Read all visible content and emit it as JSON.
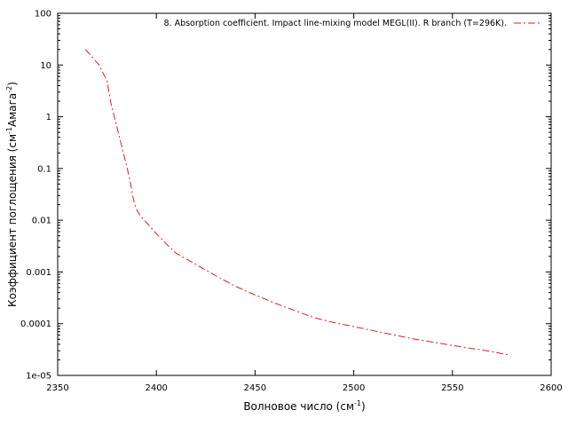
{
  "chart_data": {
    "type": "line",
    "title": "",
    "xlabel": {
      "pre": "Волновое число (см",
      "sup": "-1",
      "post": ")"
    },
    "ylabel": {
      "pre": "Коэффициент поглощения (см",
      "sup1": "-1",
      "mid": "Амага",
      "sup2": "-2",
      "post": ")"
    },
    "xlim": [
      2350,
      2600
    ],
    "ylim": [
      1e-05,
      100
    ],
    "yscale": "log",
    "grid": false,
    "legend_position": "top-right",
    "x_ticks": [
      2350,
      2400,
      2450,
      2500,
      2550,
      2600
    ],
    "x_tick_labels": [
      "2350",
      "2400",
      "2450",
      "2500",
      "2550",
      "2600"
    ],
    "y_ticks": [
      1e-05,
      0.0001,
      0.001,
      0.01,
      0.1,
      1,
      10,
      100
    ],
    "y_tick_labels": [
      "1e-05",
      "0.0001",
      "0.001",
      "0.01",
      "0.1",
      "1",
      "10",
      "100"
    ],
    "series": [
      {
        "name": "8. Absorption coefficient. Impact line-mixing model MEGL(II). R branch (T=296K).",
        "color": "#e41a1c",
        "line_style": "dash-dot",
        "x": [
          2364,
          2367,
          2371,
          2373,
          2375,
          2376,
          2377,
          2379,
          2381,
          2383,
          2385,
          2387,
          2388,
          2389,
          2390,
          2392,
          2395,
          2400,
          2405,
          2410,
          2420,
          2430,
          2440,
          2450,
          2460,
          2470,
          2480,
          2490,
          2500,
          2510,
          2520,
          2530,
          2540,
          2550,
          2560,
          2570,
          2578
        ],
        "y": [
          20,
          15,
          10,
          7,
          5,
          3,
          1.8,
          0.9,
          0.45,
          0.22,
          0.11,
          0.05,
          0.03,
          0.02,
          0.016,
          0.012,
          0.009,
          0.0055,
          0.0035,
          0.0023,
          0.0014,
          0.00085,
          0.00053,
          0.00036,
          0.00025,
          0.00018,
          0.00013,
          0.000105,
          8.8e-05,
          7.3e-05,
          6.1e-05,
          5.1e-05,
          4.4e-05,
          3.8e-05,
          3.3e-05,
          2.9e-05,
          2.5e-05
        ]
      }
    ]
  }
}
